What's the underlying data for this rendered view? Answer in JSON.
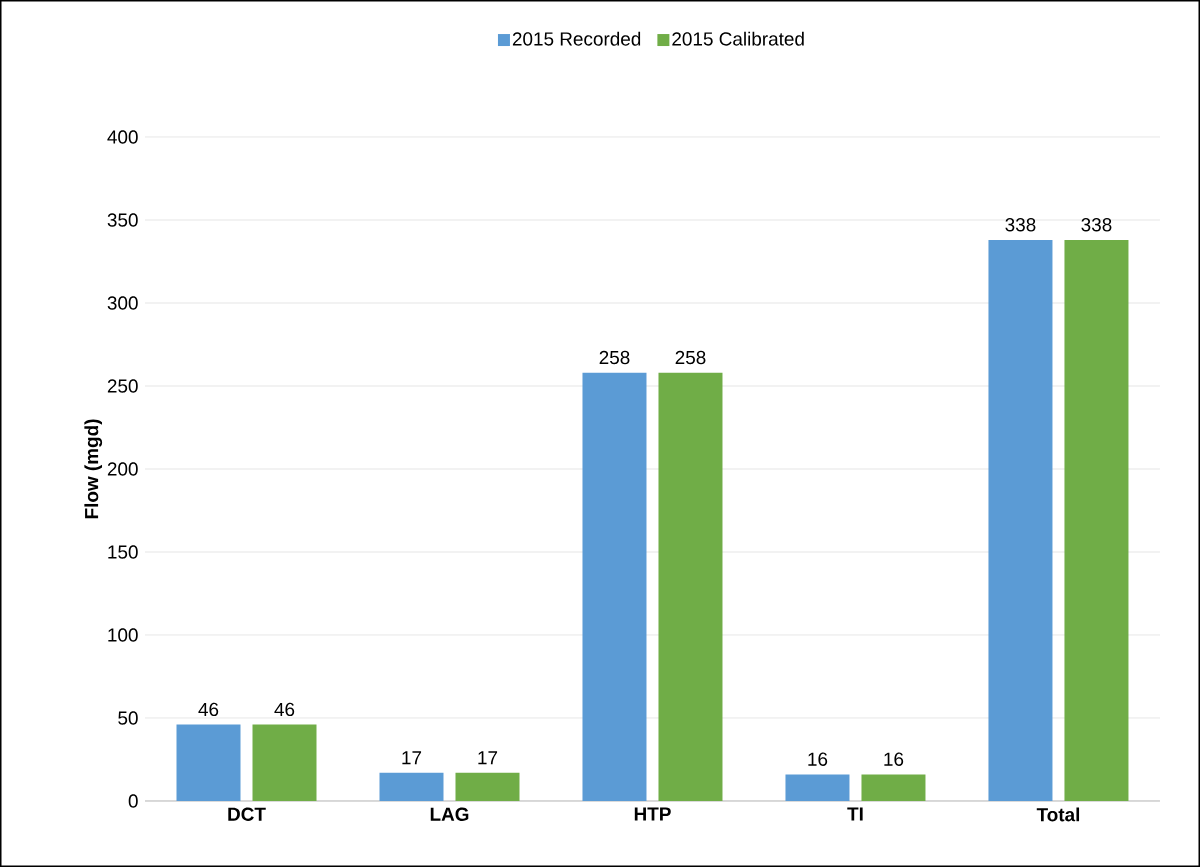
{
  "chart_data": {
    "type": "bar",
    "ylabel": "Flow (mgd)",
    "categories": [
      "DCT",
      "LAG",
      "HTP",
      "TI",
      "Total"
    ],
    "series": [
      {
        "name": "2015 Recorded",
        "color": "#5b9bd5",
        "values": [
          46,
          17,
          258,
          16,
          338
        ]
      },
      {
        "name": "2015 Calibrated",
        "color": "#70ad47",
        "values": [
          46,
          17,
          258,
          16,
          338
        ]
      }
    ],
    "ylim": [
      0,
      400
    ],
    "yticks": [
      0,
      50,
      100,
      150,
      200,
      250,
      300,
      350,
      400
    ],
    "grid": "y",
    "legend": "top",
    "data_labels": true
  }
}
